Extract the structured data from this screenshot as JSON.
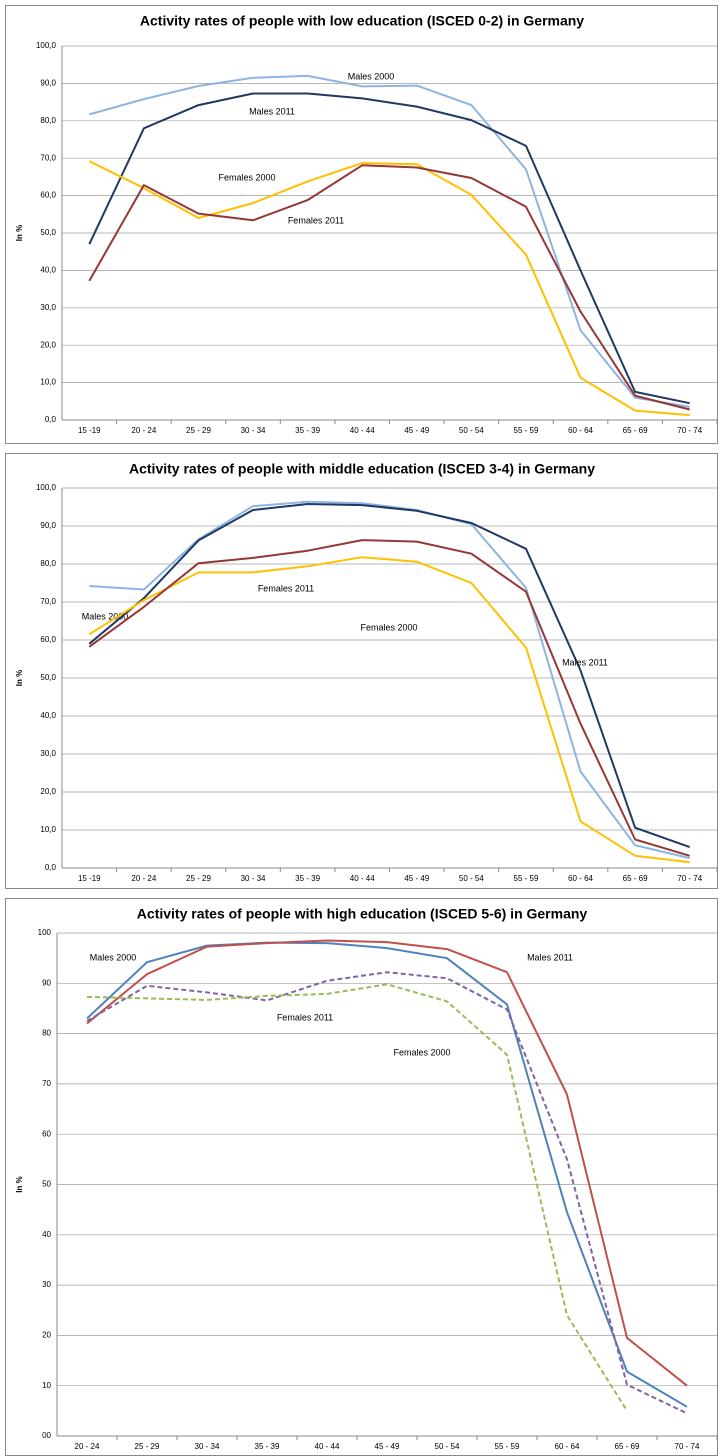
{
  "chart_data": [
    {
      "type": "line",
      "title": "Activity rates  of people with low education (ISCED 0-2) in Germany",
      "y_label": "In %",
      "categories": [
        "15 -19",
        "20 - 24",
        "25 - 29",
        "30 - 34",
        "35 - 39",
        "40 - 44",
        "45 - 49",
        "50 - 54",
        "55 - 59",
        "60 - 64",
        "65 - 69",
        "70 - 74"
      ],
      "ylim": [
        0,
        100
      ],
      "yticks": [
        {
          "value": 0,
          "label": "0,0"
        },
        {
          "value": 10,
          "label": "10,0"
        },
        {
          "value": 20,
          "label": "20,0"
        },
        {
          "value": 30,
          "label": "30,0"
        },
        {
          "value": 40,
          "label": "40,0"
        },
        {
          "value": 50,
          "label": "50,0"
        },
        {
          "value": 60,
          "label": "60,0"
        },
        {
          "value": 70,
          "label": "70,0"
        },
        {
          "value": 80,
          "label": "80,0"
        },
        {
          "value": 90,
          "label": "90,0"
        },
        {
          "value": 100,
          "label": "100,0"
        }
      ],
      "grid": true,
      "series": [
        {
          "name": "Males 2000",
          "color": "#8db4e2",
          "values": [
            81.7,
            85.8,
            89.3,
            91.5,
            92,
            89.2,
            89.4,
            84.2,
            67,
            24,
            6,
            3.5
          ]
        },
        {
          "name": "Males 2011",
          "color": "#1f3864",
          "values": [
            47,
            78,
            84.2,
            87.3,
            87.3,
            86,
            83.8,
            80.2,
            73.3,
            40,
            7.5,
            4.5
          ]
        },
        {
          "name": "Females 2000",
          "color": "#ffc000",
          "values": [
            69.2,
            62,
            54,
            58,
            63.8,
            68.7,
            68.4,
            60.2,
            44.2,
            11.3,
            2.5,
            1.3
          ]
        },
        {
          "name": "Females 2011",
          "color": "#953735",
          "values": [
            37.2,
            62.8,
            55.2,
            53.4,
            58.8,
            68.1,
            67.5,
            64.7,
            57,
            29,
            6.5,
            2.8
          ]
        }
      ]
    },
    {
      "type": "line",
      "title": "Activity rates of people with middle education (ISCED 3-4) in Germany",
      "y_label": "In %",
      "categories": [
        "15 -19",
        "20 - 24",
        "25 - 29",
        "30 - 34",
        "35 - 39",
        "40 - 44",
        "45 - 49",
        "50 - 54",
        "55 - 59",
        "60 - 64",
        "65 - 69",
        "70 - 74"
      ],
      "ylim": [
        0,
        100
      ],
      "yticks": [
        {
          "value": 0,
          "label": "0,0"
        },
        {
          "value": 10,
          "label": "10,0"
        },
        {
          "value": 20,
          "label": "20,0"
        },
        {
          "value": 30,
          "label": "30,0"
        },
        {
          "value": 40,
          "label": "40,0"
        },
        {
          "value": 50,
          "label": "50,0"
        },
        {
          "value": 60,
          "label": "60,0"
        },
        {
          "value": 70,
          "label": "70,0"
        },
        {
          "value": 80,
          "label": "80,0"
        },
        {
          "value": 90,
          "label": "90,0"
        },
        {
          "value": 100,
          "label": "100,0"
        }
      ],
      "grid": true,
      "series": [
        {
          "name": "Males 2000",
          "color": "#8db4e2",
          "values": [
            74.2,
            73.3,
            86.5,
            95.2,
            96.4,
            96,
            94.2,
            90.5,
            73.7,
            25.4,
            6,
            2.6
          ]
        },
        {
          "name": "Males 2011",
          "color": "#1f3864",
          "values": [
            59,
            71,
            86.2,
            94.2,
            95.8,
            95.5,
            94,
            90.8,
            84,
            52,
            10.6,
            5.5
          ]
        },
        {
          "name": "Females 2000",
          "color": "#ffc000",
          "values": [
            61.5,
            70.5,
            77.8,
            77.8,
            79.4,
            81.8,
            80.6,
            75,
            58,
            12.3,
            3.2,
            1.5
          ]
        },
        {
          "name": "Females 2011",
          "color": "#953735",
          "values": [
            58.2,
            68.7,
            80.2,
            81.6,
            83.5,
            86.3,
            85.9,
            82.7,
            72.7,
            38,
            7.5,
            3.2
          ]
        }
      ]
    },
    {
      "type": "line",
      "title": "Activity rates of people with high education (ISCED 5-6) in Germany",
      "y_label": "In %",
      "categories": [
        "20 - 24",
        "25 - 29",
        "30 - 34",
        "35 - 39",
        "40 - 44",
        "45 - 49",
        "50 - 54",
        "55 - 59",
        "60 - 64",
        "65 - 69",
        "70 - 74"
      ],
      "ylim": [
        0,
        100
      ],
      "yticks": [
        {
          "value": 0,
          "label": "00"
        },
        10,
        20,
        30,
        40,
        50,
        60,
        70,
        80,
        90,
        100
      ],
      "grid": true,
      "series": [
        {
          "name": "Males 2000",
          "color": "#4f81bd",
          "line_style": "solid",
          "values": [
            83,
            94.2,
            97.5,
            98.1,
            98,
            97,
            95,
            85.8,
            44.5,
            12.8,
            5.8
          ]
        },
        {
          "name": "Males 2011",
          "color": "#c0504d",
          "line_style": "solid",
          "values": [
            82,
            91.8,
            97.3,
            98,
            98.5,
            98.2,
            96.8,
            92.2,
            67.9,
            19.5,
            10
          ]
        },
        {
          "name": "Females 2011",
          "color": "#8064a2",
          "line_style": "dashed",
          "values": [
            82.5,
            89.5,
            88.2,
            86.6,
            90.5,
            92.2,
            91,
            84.8,
            55,
            10.2,
            4.5
          ]
        },
        {
          "name": "Females 2000",
          "color": "#9bbb59",
          "line_style": "dashed",
          "values": [
            87.3,
            87,
            86.7,
            87.5,
            87.9,
            89.8,
            86.4,
            75.8,
            24,
            5,
            null
          ]
        }
      ]
    }
  ]
}
